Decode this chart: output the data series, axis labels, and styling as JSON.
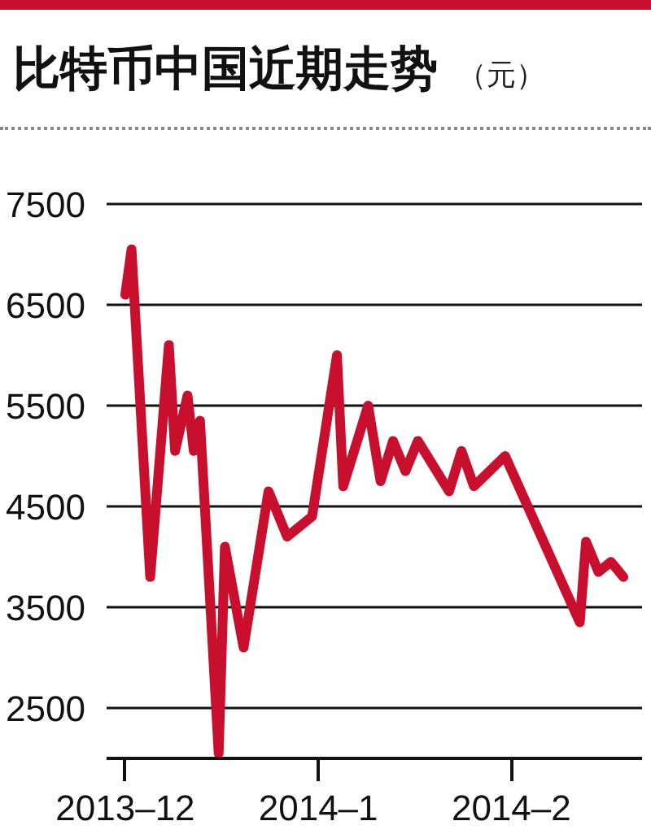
{
  "chart_data": {
    "type": "line",
    "title": "比特币中国近期走势",
    "ylabel": "（元）",
    "x": [
      "2013-12-01",
      "2013-12-02",
      "2013-12-05",
      "2013-12-08",
      "2013-12-09",
      "2013-12-11",
      "2013-12-12",
      "2013-12-13",
      "2013-12-16",
      "2013-12-17",
      "2013-12-20",
      "2013-12-24",
      "2013-12-27",
      "2013-12-31",
      "2014-01-04",
      "2014-01-05",
      "2014-01-09",
      "2014-01-11",
      "2014-01-13",
      "2014-01-15",
      "2014-01-17",
      "2014-01-22",
      "2014-01-24",
      "2014-01-26",
      "2014-01-31",
      "2014-02-12",
      "2014-02-13",
      "2014-02-15",
      "2014-02-17",
      "2014-02-19"
    ],
    "series": [
      {
        "color": "#c8102e",
        "values": [
          6600,
          7050,
          3800,
          6100,
          5050,
          5600,
          5050,
          5350,
          2050,
          4100,
          3100,
          4650,
          4200,
          4400,
          6000,
          4700,
          5500,
          4750,
          5150,
          4850,
          5150,
          4650,
          5050,
          4700,
          5000,
          3350,
          4150,
          3850,
          3950,
          3800
        ]
      }
    ],
    "xlim": [
      "2013-11-28",
      "2014-02-22"
    ],
    "xticks": [
      {
        "value": "2013-12-01",
        "label": "2013–12"
      },
      {
        "value": "2014-01-01",
        "label": "2014–1"
      },
      {
        "value": "2014-02-01",
        "label": "2014–2"
      }
    ],
    "ylim": [
      2000,
      7500
    ],
    "yticks": [
      2500,
      3500,
      4500,
      5500,
      6500,
      7500
    ],
    "grid": "y"
  }
}
